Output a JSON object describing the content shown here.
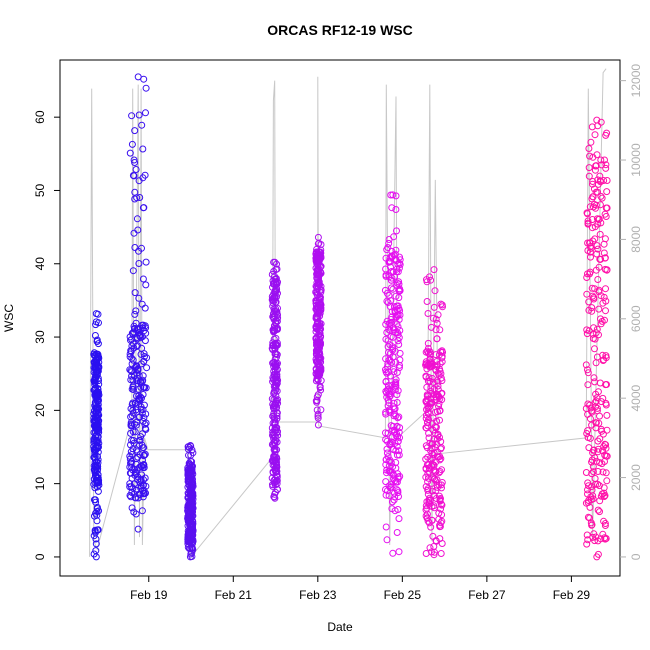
{
  "chart_data": {
    "type": "scatter",
    "title": "ORCAS RF12-19 WSC",
    "xlabel": "Date",
    "ylabel": "WSC",
    "xlim": [
      16.9,
      30.15
    ],
    "ylim": [
      -2.6,
      67.8
    ],
    "y2lim": [
      -480,
      12520
    ],
    "x_ticks": [
      {
        "v": 19,
        "label": "Feb 19"
      },
      {
        "v": 21,
        "label": "Feb 21"
      },
      {
        "v": 23,
        "label": "Feb 23"
      },
      {
        "v": 25,
        "label": "Feb 25"
      },
      {
        "v": 27,
        "label": "Feb 27"
      },
      {
        "v": 29,
        "label": "Feb 29"
      }
    ],
    "y_ticks": [
      0,
      10,
      20,
      30,
      40,
      50,
      60
    ],
    "y2_ticks": [
      0,
      2000,
      4000,
      6000,
      8000,
      10000,
      12000
    ],
    "series": [
      {
        "color": "#2a10f0",
        "x": [
          17.7,
          17.82
        ],
        "ymin": 0.0,
        "ymax": 33.2,
        "core": [
          10,
          28
        ]
      },
      {
        "color": "#3a10f0",
        "x": [
          18.55,
          18.95
        ],
        "ymin": 3.8,
        "ymax": 65.5,
        "core": [
          8,
          32
        ]
      },
      {
        "color": "#5a10f0",
        "x": [
          19.92,
          20.05
        ],
        "ymin": 0.0,
        "ymax": 15.2,
        "core": [
          2,
          12
        ]
      },
      {
        "color": "#9a10f0",
        "x": [
          21.92,
          22.05
        ],
        "ymin": 8.0,
        "ymax": 40.2,
        "core": [
          10,
          38
        ]
      },
      {
        "color": "#b010f0",
        "x": [
          22.95,
          23.08
        ],
        "ymin": 18.0,
        "ymax": 43.6,
        "core": [
          24,
          42
        ]
      },
      {
        "color": "#e510f0",
        "x": [
          24.6,
          24.95
        ],
        "ymin": 0.5,
        "ymax": 49.4,
        "core": [
          8,
          42
        ]
      },
      {
        "color": "#f010d0",
        "x": [
          25.55,
          25.95
        ],
        "ymin": 0.3,
        "ymax": 39.2,
        "core": [
          4,
          28
        ]
      },
      {
        "color": "#ff10a8",
        "x": [
          29.35,
          29.85
        ],
        "ymin": 0.0,
        "ymax": 59.6,
        "core": [
          2,
          55
        ]
      }
    ],
    "altitude_line": {
      "color": "#c8c8c8",
      "points": [
        [
          17.6,
          0
        ],
        [
          17.65,
          11800
        ],
        [
          17.7,
          400
        ],
        [
          17.78,
          200
        ],
        [
          18.6,
          3500
        ],
        [
          18.62,
          11800
        ],
        [
          18.66,
          300
        ],
        [
          18.75,
          11900
        ],
        [
          18.78,
          500
        ],
        [
          18.82,
          11800
        ],
        [
          18.85,
          300
        ],
        [
          18.9,
          3000
        ],
        [
          18.98,
          2700
        ],
        [
          19.92,
          2700
        ],
        [
          20.0,
          0
        ],
        [
          21.92,
          2500
        ],
        [
          21.95,
          11500
        ],
        [
          21.98,
          12000
        ],
        [
          22.0,
          3400
        ],
        [
          23.0,
          3400
        ],
        [
          23.0,
          12100
        ],
        [
          23.02,
          3300
        ],
        [
          24.6,
          3000
        ],
        [
          24.62,
          11900
        ],
        [
          24.7,
          300
        ],
        [
          24.85,
          11600
        ],
        [
          24.88,
          3000
        ],
        [
          25.6,
          3700
        ],
        [
          25.65,
          11900
        ],
        [
          25.7,
          400
        ],
        [
          25.78,
          9500
        ],
        [
          25.85,
          2600
        ],
        [
          29.35,
          3000
        ],
        [
          29.4,
          11800
        ],
        [
          29.5,
          400
        ],
        [
          29.75,
          12200
        ],
        [
          29.82,
          12300
        ]
      ]
    }
  }
}
